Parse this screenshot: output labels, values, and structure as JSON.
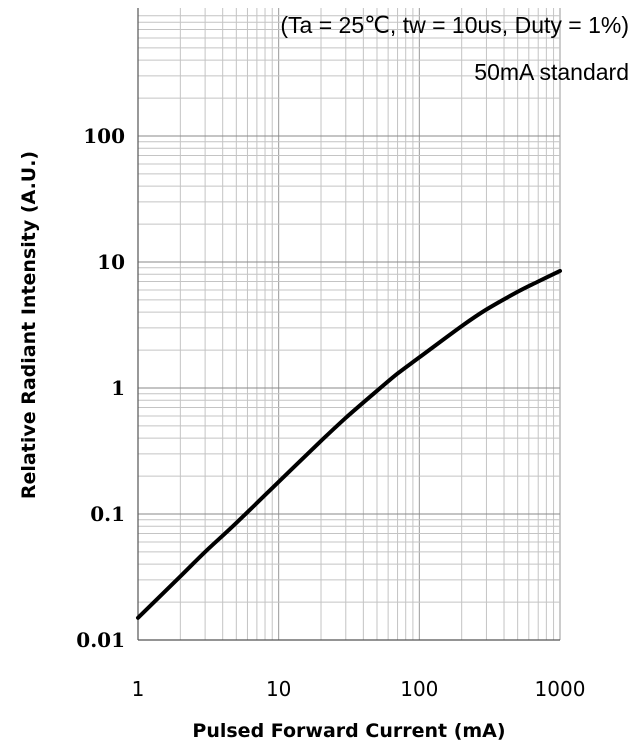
{
  "chart_data": {
    "type": "line",
    "title": "",
    "annotations": [
      "(Ta = 25℃, tw = 10us, Duty = 1%)",
      "50mA standard"
    ],
    "xlabel": "Pulsed Forward Current (mA)",
    "ylabel": "Relative Radiant Intensity (A.U.)",
    "xscale": "log",
    "yscale": "log",
    "xlim": [
      1,
      1000
    ],
    "ylim": [
      0.01,
      1000
    ],
    "xticks": [
      1,
      10,
      100,
      1000
    ],
    "xtick_labels": [
      "1",
      "10",
      "100",
      "1000"
    ],
    "yticks": [
      0.01,
      0.1,
      1,
      10,
      100
    ],
    "ytick_labels": [
      "0.01",
      "0.1",
      "1",
      "10",
      "100"
    ],
    "grid": true,
    "series": [
      {
        "x": [
          1,
          2,
          3,
          5,
          10,
          20,
          30,
          50,
          70,
          100,
          200,
          300,
          500,
          700,
          1000
        ],
        "y": [
          0.015,
          0.032,
          0.05,
          0.085,
          0.18,
          0.38,
          0.58,
          0.95,
          1.3,
          1.75,
          3.1,
          4.2,
          5.8,
          7.0,
          8.5
        ]
      }
    ]
  }
}
